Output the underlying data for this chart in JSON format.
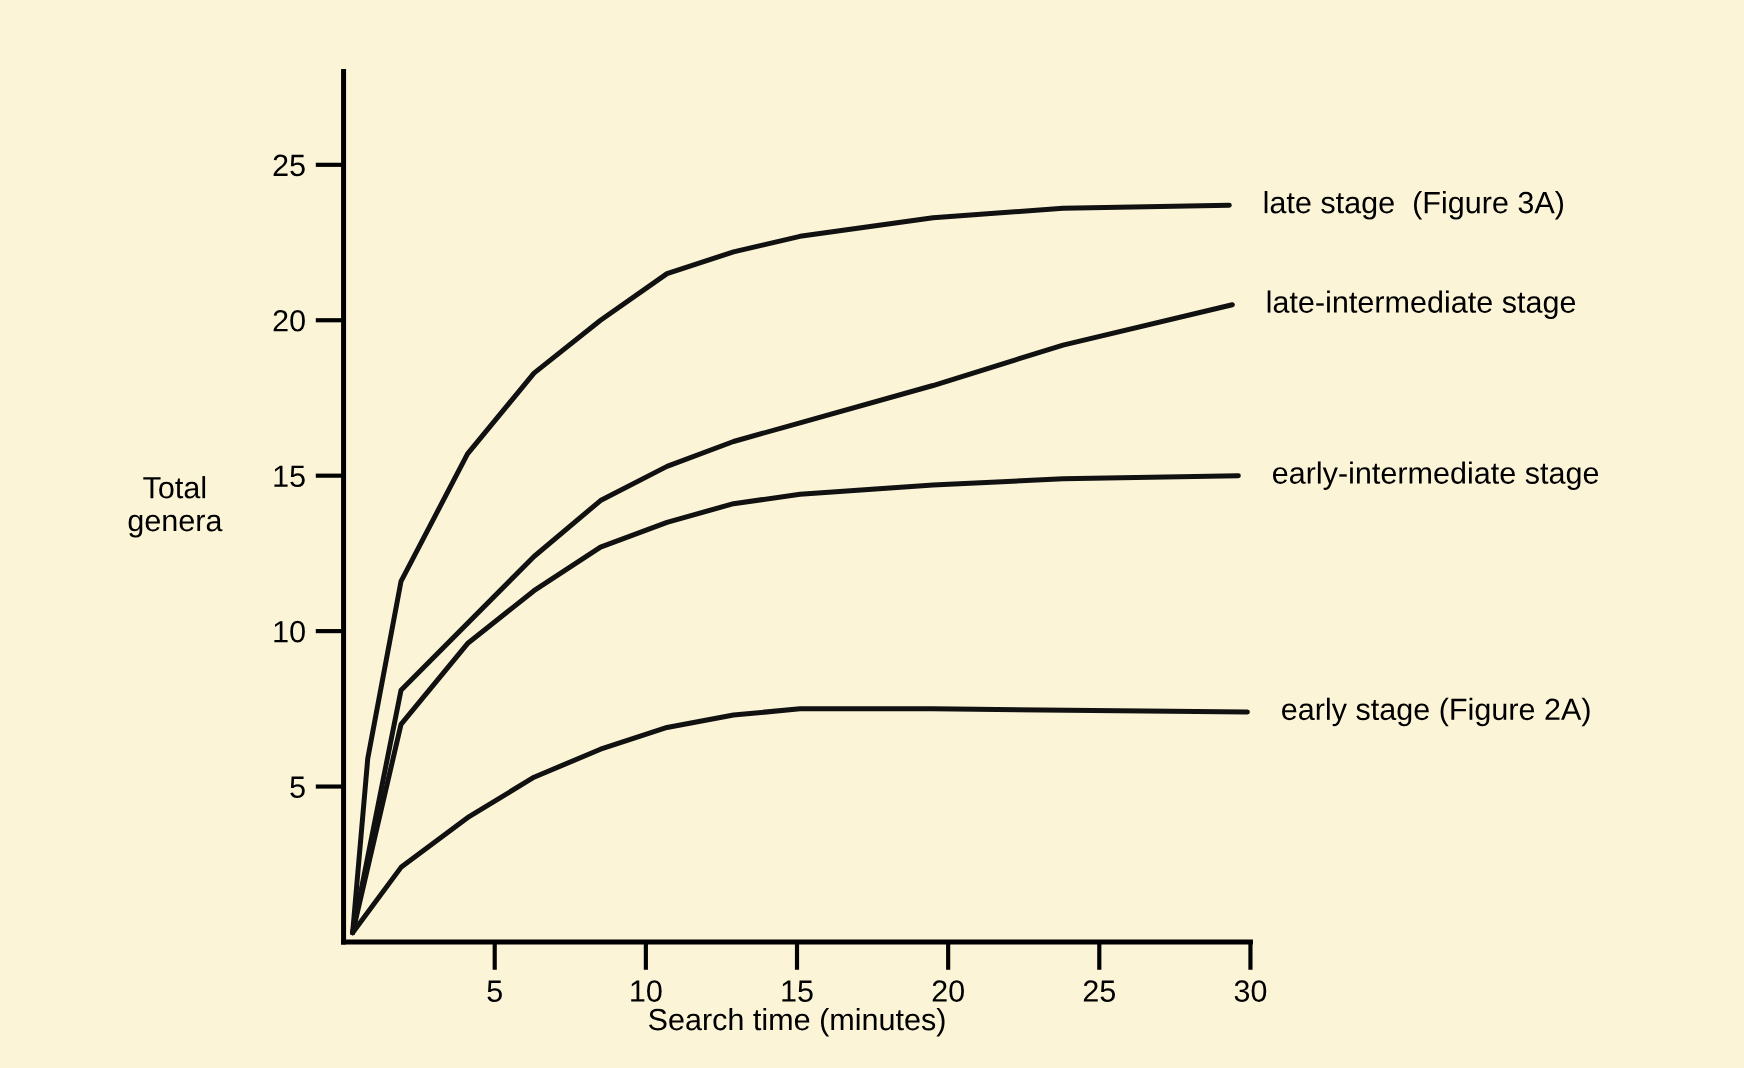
{
  "chart_data": {
    "type": "line",
    "xlabel": "Search time (minutes)",
    "ylabel": "Total\ngenera",
    "xlim": [
      0,
      30
    ],
    "ylim": [
      0,
      28
    ],
    "xticks": [
      5,
      10,
      15,
      20,
      25,
      30
    ],
    "yticks": [
      5,
      10,
      15,
      20,
      25
    ],
    "grid": false,
    "legend": false,
    "marker": "none",
    "line_style": "solid",
    "series": [
      {
        "name": "late stage  (Figure 3A)",
        "color": "#111111",
        "x": [
          0.3,
          0.8,
          1.9,
          4.1,
          6.3,
          8.5,
          10.7,
          12.9,
          15.1,
          19.5,
          23.8,
          29.3
        ],
        "values": [
          0.3,
          5.9,
          11.6,
          15.7,
          18.3,
          20.0,
          21.5,
          22.2,
          22.7,
          23.3,
          23.6,
          23.7
        ]
      },
      {
        "name": "late-intermediate stage",
        "color": "#111111",
        "x": [
          0.3,
          1.9,
          6.3,
          8.5,
          10.7,
          12.9,
          15.1,
          19.5,
          23.8,
          29.4
        ],
        "values": [
          0.3,
          8.1,
          12.4,
          14.2,
          15.3,
          16.1,
          16.7,
          17.9,
          19.2,
          20.5
        ]
      },
      {
        "name": "early-intermediate stage",
        "color": "#111111",
        "x": [
          0.3,
          1.9,
          4.1,
          6.3,
          8.5,
          10.7,
          12.9,
          15.1,
          19.5,
          23.8,
          29.6
        ],
        "values": [
          0.3,
          7.0,
          9.6,
          11.3,
          12.7,
          13.5,
          14.1,
          14.4,
          14.7,
          14.9,
          15.0
        ]
      },
      {
        "name": "early stage (Figure 2A)",
        "color": "#111111",
        "x": [
          0.3,
          1.9,
          4.1,
          6.3,
          8.5,
          10.7,
          12.9,
          15.1,
          19.5,
          29.9
        ],
        "values": [
          0.3,
          2.4,
          4.0,
          5.3,
          6.2,
          6.9,
          7.3,
          7.5,
          7.5,
          7.4
        ]
      }
    ]
  }
}
